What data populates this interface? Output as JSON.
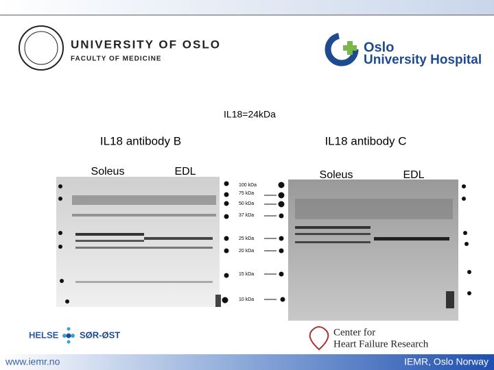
{
  "header": {
    "university": "UNIVERSITY OF OSLO",
    "faculty": "FACULTY OF MEDICINE",
    "hospital_line1": "Oslo",
    "hospital_line2": "University Hospital"
  },
  "slide": {
    "title": "IL18=24kDa",
    "panels": [
      {
        "title": "IL18 antibody B",
        "lanes": [
          "Soleus",
          "EDL"
        ]
      },
      {
        "title": "IL18 antibody C",
        "lanes": [
          "Soleus",
          "EDL"
        ]
      }
    ],
    "ladder": [
      "100 kDa",
      "75 kDa",
      "50 kDa",
      "37 kDa",
      "25 kDa",
      "20 kDa",
      "15 kDa",
      "10 kDa"
    ]
  },
  "logos": {
    "helse": "HELSE",
    "region": "SØR-ØST",
    "center_line1": "Center for",
    "center_line2": "Heart Failure Research"
  },
  "footer": {
    "left": "www.iemr.no",
    "right": "IEMR, Oslo Norway"
  }
}
